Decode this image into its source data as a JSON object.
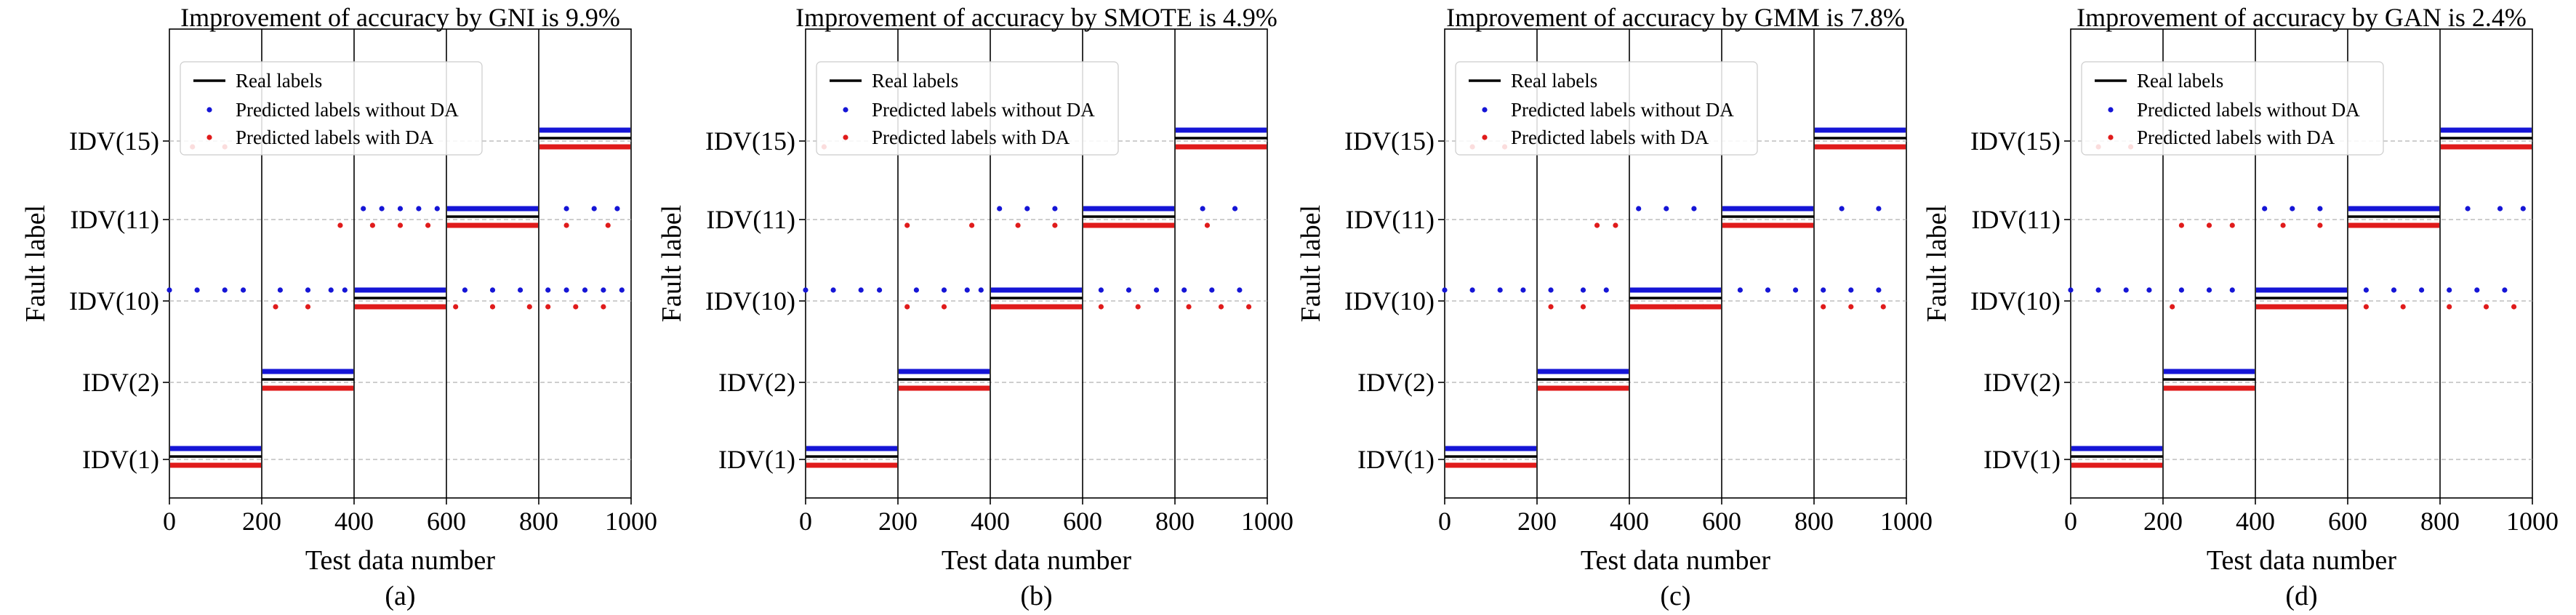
{
  "chart_data": [
    {
      "type": "scatter",
      "panel_label": "(a)",
      "title": "Improvement of accuracy by GNI is 9.9%",
      "xlabel": "Test data number",
      "ylabel": "Fault label",
      "xlim": [
        0,
        1000
      ],
      "xticks": [
        0,
        200,
        400,
        600,
        800,
        1000
      ],
      "categories": [
        "IDV(1)",
        "IDV(2)",
        "IDV(10)",
        "IDV(11)",
        "IDV(15)"
      ],
      "segments": [
        [
          0,
          200
        ],
        [
          200,
          400
        ],
        [
          400,
          600
        ],
        [
          600,
          800
        ],
        [
          800,
          1000
        ]
      ],
      "grid": "horizontal dashed",
      "legend_position": "top-left",
      "legend": [
        "Real labels",
        "Predicted labels without DA",
        "Predicted labels with DA"
      ],
      "series": [
        {
          "name": "Real labels",
          "values": [
            "IDV(1)",
            "IDV(2)",
            "IDV(10)",
            "IDV(11)",
            "IDV(15)"
          ]
        },
        {
          "name": "Predicted labels without DA",
          "values": [
            "IDV(1)",
            "IDV(2)",
            "IDV(10)",
            "IDV(11)",
            "IDV(15)"
          ],
          "outliers": [
            [
              0,
              "IDV(10)"
            ],
            [
              60,
              "IDV(10)"
            ],
            [
              120,
              "IDV(10)"
            ],
            [
              160,
              "IDV(10)"
            ],
            [
              240,
              "IDV(10)"
            ],
            [
              300,
              "IDV(10)"
            ],
            [
              350,
              "IDV(10)"
            ],
            [
              380,
              "IDV(10)"
            ],
            [
              420,
              "IDV(11)"
            ],
            [
              460,
              "IDV(11)"
            ],
            [
              500,
              "IDV(11)"
            ],
            [
              540,
              "IDV(11)"
            ],
            [
              580,
              "IDV(11)"
            ],
            [
              640,
              "IDV(10)"
            ],
            [
              700,
              "IDV(10)"
            ],
            [
              760,
              "IDV(10)"
            ],
            [
              820,
              "IDV(10)"
            ],
            [
              860,
              "IDV(10)"
            ],
            [
              900,
              "IDV(10)"
            ],
            [
              940,
              "IDV(10)"
            ],
            [
              980,
              "IDV(10)"
            ],
            [
              860,
              "IDV(11)"
            ],
            [
              920,
              "IDV(11)"
            ],
            [
              970,
              "IDV(11)"
            ]
          ]
        },
        {
          "name": "Predicted labels with DA",
          "values": [
            "IDV(1)",
            "IDV(2)",
            "IDV(10)",
            "IDV(11)",
            "IDV(15)"
          ],
          "outliers": [
            [
              230,
              "IDV(10)"
            ],
            [
              300,
              "IDV(10)"
            ],
            [
              370,
              "IDV(11)"
            ],
            [
              440,
              "IDV(11)"
            ],
            [
              500,
              "IDV(11)"
            ],
            [
              560,
              "IDV(11)"
            ],
            [
              620,
              "IDV(10)"
            ],
            [
              700,
              "IDV(10)"
            ],
            [
              780,
              "IDV(10)"
            ],
            [
              820,
              "IDV(10)"
            ],
            [
              880,
              "IDV(10)"
            ],
            [
              940,
              "IDV(10)"
            ],
            [
              860,
              "IDV(11)"
            ],
            [
              950,
              "IDV(11)"
            ],
            [
              50,
              "IDV(15)"
            ],
            [
              120,
              "IDV(15)"
            ]
          ]
        }
      ]
    },
    {
      "type": "scatter",
      "panel_label": "(b)",
      "title": "Improvement of accuracy by SMOTE is 4.9%",
      "xlabel": "Test data number",
      "ylabel": "Fault label",
      "xlim": [
        0,
        1000
      ],
      "xticks": [
        0,
        200,
        400,
        600,
        800,
        1000
      ],
      "categories": [
        "IDV(1)",
        "IDV(2)",
        "IDV(10)",
        "IDV(11)",
        "IDV(15)"
      ],
      "segments": [
        [
          0,
          200
        ],
        [
          200,
          400
        ],
        [
          400,
          600
        ],
        [
          600,
          800
        ],
        [
          800,
          1000
        ]
      ],
      "grid": "horizontal dashed",
      "legend_position": "top-left",
      "legend": [
        "Real labels",
        "Predicted labels without DA",
        "Predicted labels with DA"
      ],
      "series": [
        {
          "name": "Real labels",
          "values": [
            "IDV(1)",
            "IDV(2)",
            "IDV(10)",
            "IDV(11)",
            "IDV(15)"
          ]
        },
        {
          "name": "Predicted labels without DA",
          "values": [
            "IDV(1)",
            "IDV(2)",
            "IDV(10)",
            "IDV(11)",
            "IDV(15)"
          ],
          "outliers": [
            [
              0,
              "IDV(10)"
            ],
            [
              60,
              "IDV(10)"
            ],
            [
              120,
              "IDV(10)"
            ],
            [
              160,
              "IDV(10)"
            ],
            [
              240,
              "IDV(10)"
            ],
            [
              300,
              "IDV(10)"
            ],
            [
              350,
              "IDV(10)"
            ],
            [
              380,
              "IDV(10)"
            ],
            [
              420,
              "IDV(11)"
            ],
            [
              480,
              "IDV(11)"
            ],
            [
              540,
              "IDV(11)"
            ],
            [
              640,
              "IDV(10)"
            ],
            [
              700,
              "IDV(10)"
            ],
            [
              760,
              "IDV(10)"
            ],
            [
              820,
              "IDV(10)"
            ],
            [
              880,
              "IDV(10)"
            ],
            [
              940,
              "IDV(10)"
            ],
            [
              860,
              "IDV(11)"
            ],
            [
              930,
              "IDV(11)"
            ]
          ]
        },
        {
          "name": "Predicted labels with DA",
          "values": [
            "IDV(1)",
            "IDV(2)",
            "IDV(10)",
            "IDV(11)",
            "IDV(15)"
          ],
          "outliers": [
            [
              220,
              "IDV(10)"
            ],
            [
              300,
              "IDV(10)"
            ],
            [
              220,
              "IDV(11)"
            ],
            [
              360,
              "IDV(11)"
            ],
            [
              460,
              "IDV(11)"
            ],
            [
              540,
              "IDV(11)"
            ],
            [
              640,
              "IDV(10)"
            ],
            [
              720,
              "IDV(10)"
            ],
            [
              830,
              "IDV(10)"
            ],
            [
              900,
              "IDV(10)"
            ],
            [
              960,
              "IDV(10)"
            ],
            [
              870,
              "IDV(11)"
            ],
            [
              40,
              "IDV(15)"
            ]
          ]
        }
      ]
    },
    {
      "type": "scatter",
      "panel_label": "(c)",
      "title": "Improvement of accuracy by GMM is 7.8%",
      "xlabel": "Test data number",
      "ylabel": "Fault label",
      "xlim": [
        0,
        1000
      ],
      "xticks": [
        0,
        200,
        400,
        600,
        800,
        1000
      ],
      "categories": [
        "IDV(1)",
        "IDV(2)",
        "IDV(10)",
        "IDV(11)",
        "IDV(15)"
      ],
      "segments": [
        [
          0,
          200
        ],
        [
          200,
          400
        ],
        [
          400,
          600
        ],
        [
          600,
          800
        ],
        [
          800,
          1000
        ]
      ],
      "grid": "horizontal dashed",
      "legend_position": "top-left",
      "legend": [
        "Real labels",
        "Predicted labels without DA",
        "Predicted labels with DA"
      ],
      "series": [
        {
          "name": "Real labels",
          "values": [
            "IDV(1)",
            "IDV(2)",
            "IDV(10)",
            "IDV(11)",
            "IDV(15)"
          ]
        },
        {
          "name": "Predicted labels without DA",
          "values": [
            "IDV(1)",
            "IDV(2)",
            "IDV(10)",
            "IDV(11)",
            "IDV(15)"
          ],
          "outliers": [
            [
              0,
              "IDV(10)"
            ],
            [
              60,
              "IDV(10)"
            ],
            [
              120,
              "IDV(10)"
            ],
            [
              170,
              "IDV(10)"
            ],
            [
              230,
              "IDV(10)"
            ],
            [
              300,
              "IDV(10)"
            ],
            [
              350,
              "IDV(10)"
            ],
            [
              420,
              "IDV(11)"
            ],
            [
              480,
              "IDV(11)"
            ],
            [
              540,
              "IDV(11)"
            ],
            [
              640,
              "IDV(10)"
            ],
            [
              700,
              "IDV(10)"
            ],
            [
              760,
              "IDV(10)"
            ],
            [
              820,
              "IDV(10)"
            ],
            [
              880,
              "IDV(10)"
            ],
            [
              940,
              "IDV(10)"
            ],
            [
              860,
              "IDV(11)"
            ],
            [
              940,
              "IDV(11)"
            ]
          ]
        },
        {
          "name": "Predicted labels with DA",
          "values": [
            "IDV(1)",
            "IDV(2)",
            "IDV(10)",
            "IDV(11)",
            "IDV(15)"
          ],
          "outliers": [
            [
              230,
              "IDV(10)"
            ],
            [
              300,
              "IDV(10)"
            ],
            [
              330,
              "IDV(11)"
            ],
            [
              370,
              "IDV(11)"
            ],
            [
              420,
              "IDV(10)"
            ],
            [
              500,
              "IDV(10)"
            ],
            [
              560,
              "IDV(10)"
            ],
            [
              820,
              "IDV(10)"
            ],
            [
              880,
              "IDV(10)"
            ],
            [
              950,
              "IDV(10)"
            ],
            [
              60,
              "IDV(15)"
            ],
            [
              130,
              "IDV(15)"
            ]
          ]
        }
      ]
    },
    {
      "type": "scatter",
      "panel_label": "(d)",
      "title": "Improvement of accuracy by GAN is 2.4%",
      "xlabel": "Test data number",
      "ylabel": "Fault label",
      "xlim": [
        0,
        1000
      ],
      "xticks": [
        0,
        200,
        400,
        600,
        800,
        1000
      ],
      "categories": [
        "IDV(1)",
        "IDV(2)",
        "IDV(10)",
        "IDV(11)",
        "IDV(15)"
      ],
      "segments": [
        [
          0,
          200
        ],
        [
          200,
          400
        ],
        [
          400,
          600
        ],
        [
          600,
          800
        ],
        [
          800,
          1000
        ]
      ],
      "grid": "horizontal dashed",
      "legend_position": "top-left",
      "legend": [
        "Real labels",
        "Predicted labels without DA",
        "Predicted labels with DA"
      ],
      "series": [
        {
          "name": "Real labels",
          "values": [
            "IDV(1)",
            "IDV(2)",
            "IDV(10)",
            "IDV(11)",
            "IDV(15)"
          ]
        },
        {
          "name": "Predicted labels without DA",
          "values": [
            "IDV(1)",
            "IDV(2)",
            "IDV(10)",
            "IDV(11)",
            "IDV(15)"
          ],
          "outliers": [
            [
              0,
              "IDV(10)"
            ],
            [
              60,
              "IDV(10)"
            ],
            [
              120,
              "IDV(10)"
            ],
            [
              170,
              "IDV(10)"
            ],
            [
              240,
              "IDV(10)"
            ],
            [
              300,
              "IDV(10)"
            ],
            [
              350,
              "IDV(10)"
            ],
            [
              420,
              "IDV(11)"
            ],
            [
              480,
              "IDV(11)"
            ],
            [
              540,
              "IDV(11)"
            ],
            [
              640,
              "IDV(10)"
            ],
            [
              700,
              "IDV(10)"
            ],
            [
              760,
              "IDV(10)"
            ],
            [
              820,
              "IDV(10)"
            ],
            [
              880,
              "IDV(10)"
            ],
            [
              940,
              "IDV(10)"
            ],
            [
              860,
              "IDV(11)"
            ],
            [
              930,
              "IDV(11)"
            ],
            [
              980,
              "IDV(11)"
            ]
          ]
        },
        {
          "name": "Predicted labels with DA",
          "values": [
            "IDV(1)",
            "IDV(2)",
            "IDV(10)",
            "IDV(11)",
            "IDV(15)"
          ],
          "outliers": [
            [
              220,
              "IDV(10)"
            ],
            [
              240,
              "IDV(11)"
            ],
            [
              300,
              "IDV(11)"
            ],
            [
              350,
              "IDV(11)"
            ],
            [
              460,
              "IDV(11)"
            ],
            [
              540,
              "IDV(11)"
            ],
            [
              640,
              "IDV(10)"
            ],
            [
              720,
              "IDV(10)"
            ],
            [
              820,
              "IDV(10)"
            ],
            [
              900,
              "IDV(10)"
            ],
            [
              960,
              "IDV(10)"
            ],
            [
              60,
              "IDV(15)"
            ],
            [
              130,
              "IDV(15)"
            ]
          ]
        }
      ]
    }
  ],
  "colors": {
    "real": "#000000",
    "without_da": "#1515d6",
    "with_da": "#e01b1b",
    "grid": "#b0b0b0"
  }
}
